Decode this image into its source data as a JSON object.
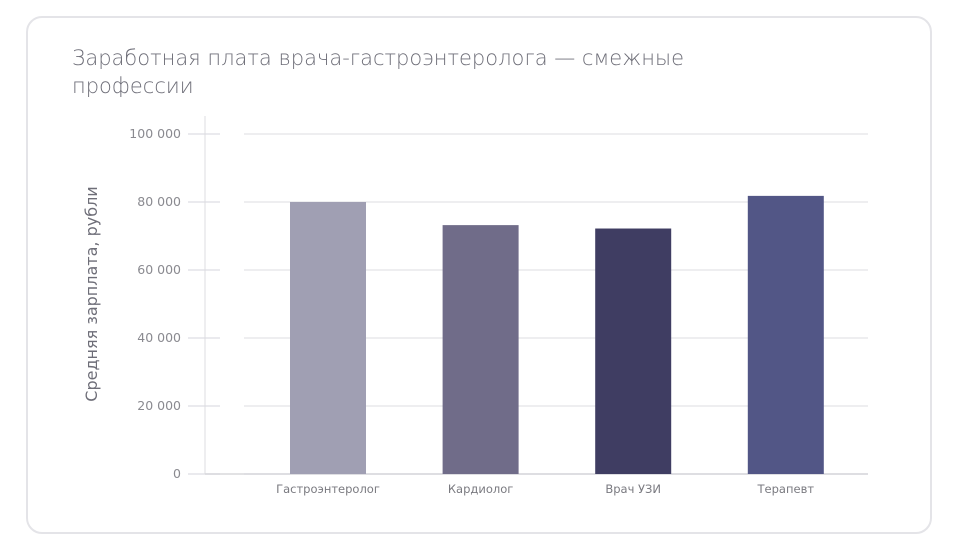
{
  "chart_data": {
    "type": "bar",
    "title": "Заработная плата врача-гастроэнтеролога — смежные профессии",
    "xlabel": "",
    "ylabel": "Средняя зарплата, рубли",
    "categories": [
      "Гастроэнтеролог",
      "Кардиолог",
      "Врач УЗИ",
      "Терапевт"
    ],
    "values": [
      80000,
      73200,
      72200,
      81800
    ],
    "colors": [
      "#a09fb3",
      "#706c89",
      "#3f3d62",
      "#525686"
    ],
    "ylim": [
      0,
      100000
    ],
    "yticks": [
      0,
      20000,
      40000,
      60000,
      80000,
      100000
    ],
    "ytick_labels": [
      "0",
      "20 000",
      "40 000",
      "60 000",
      "80 000",
      "100 000"
    ],
    "grid": true
  }
}
